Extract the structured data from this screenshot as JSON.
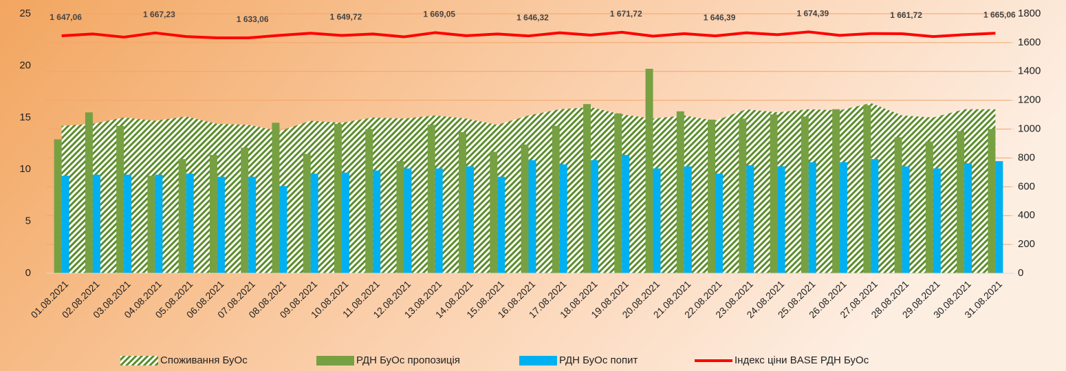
{
  "chart_data": {
    "type": "combo",
    "categories": [
      "01.08.2021",
      "02.08.2021",
      "03.08.2021",
      "04.08.2021",
      "05.08.2021",
      "06.08.2021",
      "07.08.2021",
      "08.08.2021",
      "09.08.2021",
      "10.08.2021",
      "11.08.2021",
      "12.08.2021",
      "13.08.2021",
      "14.08.2021",
      "15.08.2021",
      "16.08.2021",
      "17.08.2021",
      "18.08.2021",
      "19.08.2021",
      "20.08.2021",
      "21.08.2021",
      "22.08.2021",
      "23.08.2021",
      "24.08.2021",
      "25.08.2021",
      "26.08.2021",
      "27.08.2021",
      "28.08.2021",
      "29.08.2021",
      "30.08.2021",
      "31.08.2021"
    ],
    "series": [
      {
        "name": "Споживання БуОс",
        "type": "area",
        "color": "#5b8c2a",
        "values": [
          14.2,
          14.4,
          15.0,
          14.7,
          15.1,
          14.4,
          14.3,
          13.7,
          14.7,
          14.5,
          15.0,
          14.9,
          15.2,
          14.9,
          14.3,
          15.2,
          15.8,
          16.0,
          15.3,
          14.9,
          15.2,
          14.7,
          15.8,
          15.5,
          15.8,
          15.7,
          16.4,
          15.2,
          15.0,
          15.8,
          15.8
        ]
      },
      {
        "name": "РДН БуОс пропозиція",
        "type": "bar",
        "color": "#77a043",
        "values": [
          12.9,
          15.5,
          14.2,
          9.4,
          11.0,
          11.4,
          12.1,
          14.5,
          11.5,
          14.4,
          13.9,
          10.8,
          14.3,
          13.6,
          11.7,
          12.4,
          14.2,
          16.3,
          15.4,
          19.7,
          15.6,
          14.8,
          14.9,
          15.3,
          15.1,
          15.8,
          16.2,
          13.1,
          12.7,
          13.7,
          13.9
        ]
      },
      {
        "name": "РДН БуОс попит",
        "type": "bar",
        "color": "#00b0f0",
        "values": [
          9.4,
          9.5,
          9.5,
          9.5,
          9.6,
          9.3,
          9.3,
          8.4,
          9.6,
          9.7,
          9.9,
          10.1,
          10.1,
          10.3,
          9.3,
          10.9,
          10.5,
          10.9,
          11.4,
          10.1,
          10.3,
          9.6,
          10.4,
          10.3,
          10.7,
          10.7,
          11.0,
          10.3,
          10.1,
          10.6,
          10.8
        ]
      },
      {
        "name": "Індекс ціни BASE РДН БуОс",
        "type": "line",
        "axis": "y2",
        "color": "#ff0000",
        "values": [
          1647.06,
          1660,
          1638,
          1667.23,
          1642,
          1633,
          1633.06,
          1650,
          1665,
          1649.72,
          1660,
          1640,
          1669.05,
          1648,
          1660,
          1646.32,
          1668,
          1652,
          1671.72,
          1645,
          1662,
          1646.39,
          1668,
          1655,
          1674.39,
          1650,
          1663,
          1661.72,
          1642,
          1655,
          1665.06
        ],
        "value_labels": [
          "1 647,06",
          null,
          null,
          "1 667,23",
          null,
          null,
          "1 633,06",
          null,
          null,
          "1 649,72",
          null,
          null,
          "1 669,05",
          null,
          null,
          "1 646,32",
          null,
          null,
          "1 671,72",
          null,
          null,
          "1 646,39",
          null,
          null,
          "1 674,39",
          null,
          null,
          "1 661,72",
          null,
          null,
          "1 665,06"
        ]
      }
    ],
    "ylim": [
      0,
      25
    ],
    "yticks": [
      0,
      5,
      10,
      15,
      20,
      25
    ],
    "y2lim": [
      0,
      1800
    ],
    "y2ticks": [
      0,
      200,
      400,
      600,
      800,
      1000,
      1200,
      1400,
      1600,
      1800
    ],
    "grid": true,
    "legend": "bottom"
  }
}
